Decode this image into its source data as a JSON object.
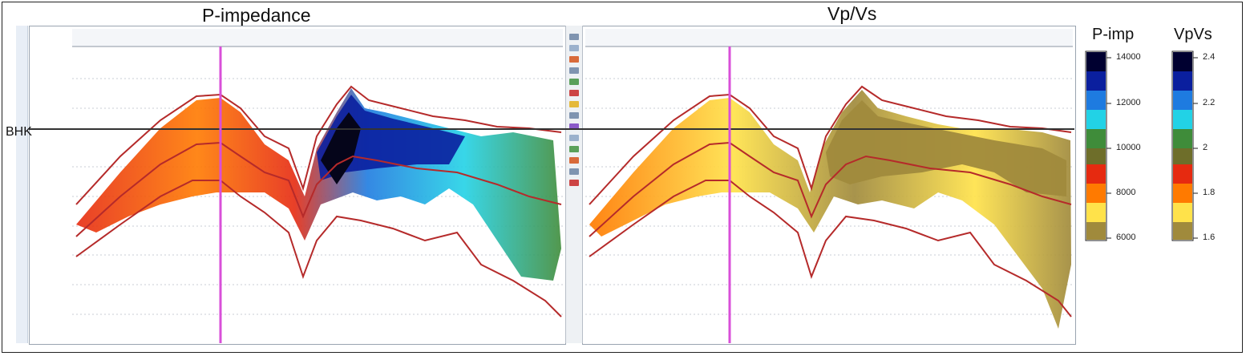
{
  "panels": {
    "left_title": "P-impedance",
    "right_title": "Vp/Vs"
  },
  "horizon_label": "BHK",
  "colorbars": {
    "pimp": {
      "title": "P-imp",
      "ticks": [
        "14000",
        "12000",
        "10000",
        "8000",
        "6000"
      ],
      "colors": [
        "#000030",
        "#0a1f9e",
        "#1e7be0",
        "#22d2e6",
        "#3f8c3a",
        "#6e6e2a",
        "#e62a10",
        "#ff7a00",
        "#ffe24a",
        "#a08a3c"
      ]
    },
    "vpvs": {
      "title": "VpVs",
      "ticks": [
        "2.4",
        "2.2",
        "2",
        "1.8",
        "1.6"
      ],
      "colors": [
        "#000030",
        "#0a1f9e",
        "#1e7be0",
        "#22d2e6",
        "#3f8c3a",
        "#6e6e2a",
        "#e62a10",
        "#ff7a00",
        "#ffe24a",
        "#a08a3c"
      ]
    }
  },
  "colors": {
    "well_marker": "#d94fd9",
    "horizon_lines": "#b52a2a",
    "bhk_line": "#333333"
  }
}
